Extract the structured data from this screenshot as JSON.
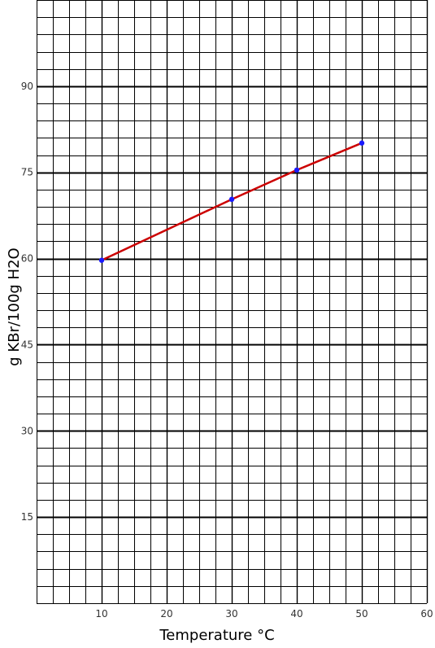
{
  "chart_data": {
    "type": "line",
    "xlabel": "Temperature °C",
    "ylabel": "g KBr/100g H2O",
    "xlim": [
      0,
      60
    ],
    "ylim": [
      0,
      105
    ],
    "x_ticks": [
      10,
      20,
      30,
      40,
      50,
      60
    ],
    "y_ticks": [
      15,
      30,
      45,
      60,
      75,
      90
    ],
    "grid": true,
    "minor_grid_x_step": 2.5,
    "minor_grid_y_step": 3,
    "series": [
      {
        "x": [
          10,
          30,
          40,
          50
        ],
        "y": [
          59.7,
          70.3,
          75.4,
          80.1
        ],
        "line_color": "#cc0000",
        "marker_color": "#1a1aff"
      }
    ],
    "colors": {
      "major_grid": "#000000",
      "minor_grid": "#000000",
      "background": "#ffffff"
    }
  }
}
